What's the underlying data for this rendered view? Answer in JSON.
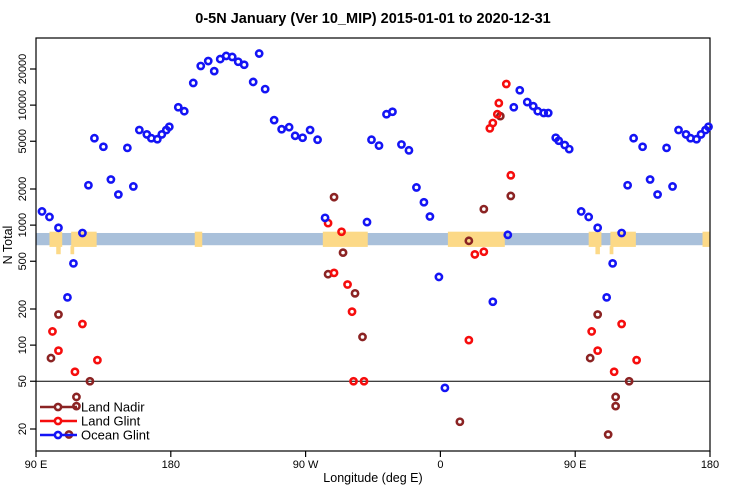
{
  "chart": {
    "title": "0-5N January (Ver 10_MIP)  2015-01-01 to 2020-12-31",
    "xlabel": "Longitude (deg E)",
    "ylabel": "N Total"
  },
  "legend": {
    "items": [
      {
        "label": "Land Nadir"
      },
      {
        "label": "Land Glint"
      },
      {
        "label": "Ocean Glint"
      }
    ]
  },
  "colors": {
    "land_nadir": "#8b2323",
    "land_glint": "#f60d0d",
    "ocean_glint": "#1414f5",
    "band_blue": "#a9c0da",
    "band_yellow": "#fcd987",
    "reference_line": "#000000",
    "frame": "#000000"
  },
  "chart_data": {
    "type": "scatter",
    "title": "0-5N January (Ver 10_MIP)  2015-01-01 to 2020-12-31",
    "xlabel": "Longitude (deg E)",
    "ylabel": "N Total",
    "x_axis": {
      "note": "axis spans 450 wrapped degrees: 90E..180..90W..0..90E..180; points with lon in [90,180] are plotted twice (at d=lon and d=lon+360)",
      "domain_deg": [
        90,
        540
      ],
      "ticks_deg": [
        90,
        180,
        270,
        360,
        450,
        540
      ],
      "tick_labels": [
        "90 E",
        "180",
        "90 W",
        "0",
        "90 E",
        "180"
      ]
    },
    "y_axis": {
      "scale": "log10",
      "ticks": [
        20,
        50,
        100,
        200,
        500,
        1000,
        2000,
        5000,
        10000,
        20000
      ],
      "range": [
        13,
        36000
      ],
      "grid": false
    },
    "reference_line_n": 50,
    "band": {
      "n_low": 680,
      "n_high": 860,
      "full_width": true
    },
    "yellow_patches_deg": [
      [
        99,
        107.5
      ],
      [
        113.5,
        130.5
      ],
      [
        196,
        201
      ],
      [
        281.5,
        311.5
      ],
      [
        365,
        403
      ],
      [
        459,
        467.5
      ],
      [
        473.5,
        490.5
      ],
      [
        535,
        540
      ]
    ],
    "yellow_descenders_deg": [
      [
        103.5,
        106.5
      ],
      [
        113,
        115.5
      ],
      [
        463.5,
        466.5
      ],
      [
        473,
        475.5
      ]
    ],
    "legend_position": "bottom-left",
    "series": [
      {
        "name": "Land Nadir",
        "points_lon_n": [
          [
            100,
            78
          ],
          [
            105,
            180
          ],
          [
            112,
            18
          ],
          [
            117,
            37
          ],
          [
            117,
            31
          ],
          [
            126,
            50
          ],
          [
            -75,
            390
          ],
          [
            -71,
            1710
          ],
          [
            -65,
            590
          ],
          [
            -57,
            270
          ],
          [
            -52,
            117
          ],
          [
            13,
            23
          ],
          [
            19,
            740
          ],
          [
            29,
            1360
          ],
          [
            40,
            8100
          ],
          [
            47,
            1750
          ]
        ]
      },
      {
        "name": "Land Glint",
        "points_lon_n": [
          [
            101,
            130
          ],
          [
            105,
            90
          ],
          [
            116,
            60
          ],
          [
            121,
            150
          ],
          [
            131,
            75
          ],
          [
            -75,
            1040
          ],
          [
            -71,
            400
          ],
          [
            -66,
            880
          ],
          [
            -62,
            320
          ],
          [
            -59,
            190
          ],
          [
            -58,
            50
          ],
          [
            -51,
            50
          ],
          [
            19,
            110
          ],
          [
            23,
            570
          ],
          [
            29,
            600
          ],
          [
            33,
            6400
          ],
          [
            35,
            7100
          ],
          [
            38,
            8400
          ],
          [
            39,
            10400
          ],
          [
            44,
            15000
          ],
          [
            47,
            2600
          ]
        ]
      },
      {
        "name": "Ocean Glint",
        "points_lon_n": [
          [
            94,
            1300
          ],
          [
            99,
            1170
          ],
          [
            105,
            950
          ],
          [
            111,
            250
          ],
          [
            115,
            480
          ],
          [
            121,
            860
          ],
          [
            125,
            2150
          ],
          [
            129,
            5300
          ],
          [
            135,
            4500
          ],
          [
            140,
            2400
          ],
          [
            145,
            1800
          ],
          [
            151,
            4400
          ],
          [
            155,
            2100
          ],
          [
            159,
            6200
          ],
          [
            164,
            5700
          ],
          [
            167,
            5300
          ],
          [
            171,
            5200
          ],
          [
            174,
            5700
          ],
          [
            177,
            6200
          ],
          [
            179,
            6600
          ],
          [
            -175,
            9600
          ],
          [
            -171,
            8900
          ],
          [
            -165,
            15300
          ],
          [
            -160,
            21200
          ],
          [
            -155,
            23300
          ],
          [
            -151,
            19200
          ],
          [
            -147,
            24200
          ],
          [
            -143,
            25700
          ],
          [
            -139,
            25200
          ],
          [
            -135,
            23000
          ],
          [
            -131,
            21700
          ],
          [
            -125,
            15600
          ],
          [
            -121,
            26900
          ],
          [
            -117,
            13600
          ],
          [
            -111,
            7500
          ],
          [
            -106,
            6300
          ],
          [
            -101,
            6550
          ],
          [
            -97,
            5550
          ],
          [
            -92,
            5350
          ],
          [
            -87,
            6200
          ],
          [
            -82,
            5150
          ],
          [
            -77,
            1150
          ],
          [
            -49,
            1060
          ],
          [
            -46,
            5150
          ],
          [
            -41,
            4600
          ],
          [
            -36,
            8400
          ],
          [
            -32,
            8800
          ],
          [
            -26,
            4700
          ],
          [
            -21,
            4200
          ],
          [
            -16,
            2060
          ],
          [
            -11,
            1550
          ],
          [
            -7,
            1180
          ],
          [
            -1,
            370
          ],
          [
            3,
            44
          ],
          [
            35,
            230
          ],
          [
            45,
            830
          ],
          [
            49,
            9600
          ],
          [
            53,
            13300
          ],
          [
            58,
            10600
          ],
          [
            62,
            9800
          ],
          [
            65,
            8900
          ],
          [
            69,
            8600
          ],
          [
            72,
            8600
          ],
          [
            77,
            5350
          ],
          [
            79,
            5050
          ],
          [
            83,
            4650
          ],
          [
            86,
            4300
          ]
        ]
      }
    ]
  }
}
